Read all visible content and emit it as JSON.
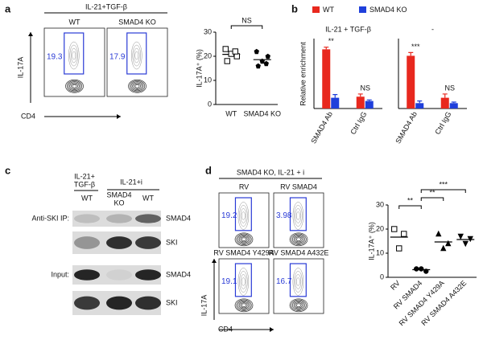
{
  "panels": {
    "a": {
      "label": "a",
      "header": "IL-21+TGF-β",
      "flow": [
        {
          "name": "WT",
          "percent": "19.3"
        },
        {
          "name": "SMAD4 KO",
          "percent": "17.9"
        }
      ],
      "y_axis": "IL-17A",
      "x_axis": "CD4"
    },
    "b": {
      "label": "b"
    },
    "c": {
      "label": "c",
      "header_left": [
        "IL-21+",
        "TGF-β"
      ],
      "header_right": "IL-21+i",
      "lanes": [
        [
          "WT"
        ],
        [
          "SMAD4",
          "KO"
        ],
        [
          "WT"
        ]
      ],
      "row_groups": [
        "Anti-SKI IP:",
        "Input:"
      ],
      "rows": [
        "SMAD4",
        "SKI",
        "SMAD4",
        "SKI"
      ]
    },
    "d": {
      "label": "d",
      "header": "SMAD4 KO, IL-21 + i",
      "flow": [
        {
          "name": "RV",
          "percent": "19.2"
        },
        {
          "name": "RV SMAD4",
          "percent": "3.98"
        },
        {
          "name": "RV SMAD4 Y429A",
          "percent": "19.1"
        },
        {
          "name": "RV SMAD4 A432E",
          "percent": "16.7"
        }
      ],
      "y_axis": "IL-17A",
      "x_axis": "CD4"
    }
  },
  "chart_data": [
    {
      "type": "scatter",
      "ylabel": "IL-17A⁺ (%)",
      "categories": [
        "WT",
        "SMAD4 KO"
      ],
      "groups": [
        {
          "values": [
            23,
            21,
            20,
            18,
            22
          ],
          "marker": "square-open"
        },
        {
          "values": [
            22,
            18,
            20,
            16,
            17
          ],
          "marker": "pentagon"
        }
      ],
      "ylim": [
        0,
        30
      ],
      "yticks": [
        0,
        10,
        20,
        30
      ],
      "annotations": [
        "NS"
      ]
    },
    {
      "type": "grouped-bar",
      "ylabel": "Relative enrichment",
      "series": [
        {
          "name": "WT",
          "color": "#e8281e"
        },
        {
          "name": "SMAD4 KO",
          "color": "#1f3fdb"
        }
      ],
      "ylim": [
        0,
        6.5
      ],
      "groups": [
        {
          "title": "IL-21 + TGF-β",
          "categories": [
            "SMAD4 Ab",
            "Ctrl IgG"
          ],
          "values": [
            [
              5.5,
              1.1
            ],
            [
              1.0,
              0.7
            ]
          ],
          "errors": [
            [
              0.2,
              0.25
            ],
            [
              0.3,
              0.1
            ]
          ],
          "annotations": [
            "**",
            "NS"
          ]
        },
        {
          "title": "-",
          "categories": [
            "SMAD4 Ab",
            "Ctrl IgG"
          ],
          "values": [
            [
              4.9,
              1.0
            ],
            [
              0.5,
              0.5
            ]
          ],
          "errors": [
            [
              0.3,
              0.35
            ],
            [
              0.2,
              0.1
            ]
          ],
          "annotations": [
            "***",
            "NS"
          ]
        }
      ]
    },
    {
      "type": "scatter",
      "ylabel": "IL-17A⁺ (%)",
      "categories": [
        "RV",
        "RV SMAD4",
        "RV SMAD4 Y429A",
        "RV SMAD4 A432E"
      ],
      "groups": [
        {
          "values": [
            20,
            18,
            12
          ],
          "marker": "square-open"
        },
        {
          "values": [
            3.5,
            2.5,
            3.5
          ],
          "marker": "circle"
        },
        {
          "values": [
            18,
            14,
            12
          ],
          "marker": "triangle"
        },
        {
          "values": [
            17,
            16,
            14
          ],
          "marker": "triangle-down"
        }
      ],
      "ylim": [
        0,
        30
      ],
      "yticks": [
        0,
        10,
        20,
        30
      ],
      "annotations": [
        "**",
        "**",
        "***"
      ]
    }
  ]
}
